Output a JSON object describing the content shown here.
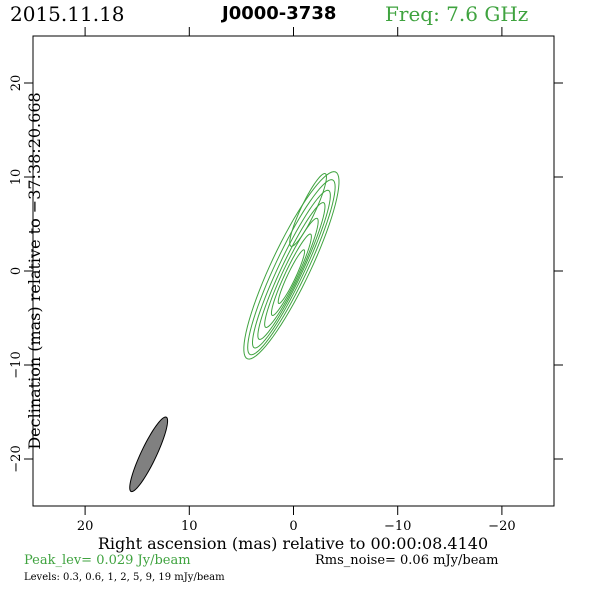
{
  "header": {
    "date": "2015.11.18",
    "source": "J0000-3738",
    "freq": "Freq: 7.6 GHz"
  },
  "footer": {
    "peak": "Peak_lev=  0.029 Jy/beam",
    "rms": "Rms_noise= 0.06 mJy/beam",
    "levels": "Levels: 0.3, 0.6,   1,   2,   5,   9,  19 mJy/beam"
  },
  "colors": {
    "contour": "#3fa33f",
    "beam_fill": "#808080",
    "axes": "#000000"
  },
  "chart_data": {
    "type": "contour",
    "xlabel": "Right ascension (mas) relative to 00:00:08.4140",
    "ylabel": "Declination (mas) relative to −37:38:20.668",
    "xlim": [
      25,
      -25
    ],
    "ylim": [
      -25,
      25
    ],
    "x_ticks": [
      20,
      10,
      0,
      -10,
      -20
    ],
    "x_tick_labels": [
      "20",
      "10",
      "0",
      "−10",
      "−20"
    ],
    "y_ticks": [
      20,
      10,
      0,
      -10,
      -20
    ],
    "y_tick_labels": [
      "20",
      "10",
      "0",
      "−10",
      "−20"
    ],
    "levels_mJy_per_beam": [
      0.3,
      0.6,
      1,
      2,
      5,
      9,
      19
    ],
    "peak_Jy_per_beam": 0.029,
    "rms_noise_mJy_per_beam": 0.06,
    "contours": [
      {
        "cx": 0.2,
        "cy": 0.6,
        "a": 10.8,
        "b": 1.9,
        "pa": 23
      },
      {
        "cx": 0.2,
        "cy": 0.4,
        "a": 10.1,
        "b": 1.55,
        "pa": 23
      },
      {
        "cx": 0.2,
        "cy": 0.2,
        "a": 9.1,
        "b": 1.25,
        "pa": 23
      },
      {
        "cx": 0.2,
        "cy": 0.0,
        "a": 7.9,
        "b": 1.0,
        "pa": 23
      },
      {
        "cx": 0.2,
        "cy": -0.2,
        "a": 6.3,
        "b": 0.8,
        "pa": 23
      },
      {
        "cx": 0.2,
        "cy": -0.4,
        "a": 4.7,
        "b": 0.6,
        "pa": 23
      },
      {
        "cx": 0.2,
        "cy": -0.6,
        "a": 3.1,
        "b": 0.4,
        "pa": 23
      },
      {
        "cx": -1.4,
        "cy": 6.5,
        "a": 4.2,
        "b": 0.7,
        "pa": 23
      }
    ],
    "beam": {
      "cx": 13.9,
      "cy": -19.5,
      "a": 4.3,
      "b": 0.75,
      "pa": 23
    }
  }
}
